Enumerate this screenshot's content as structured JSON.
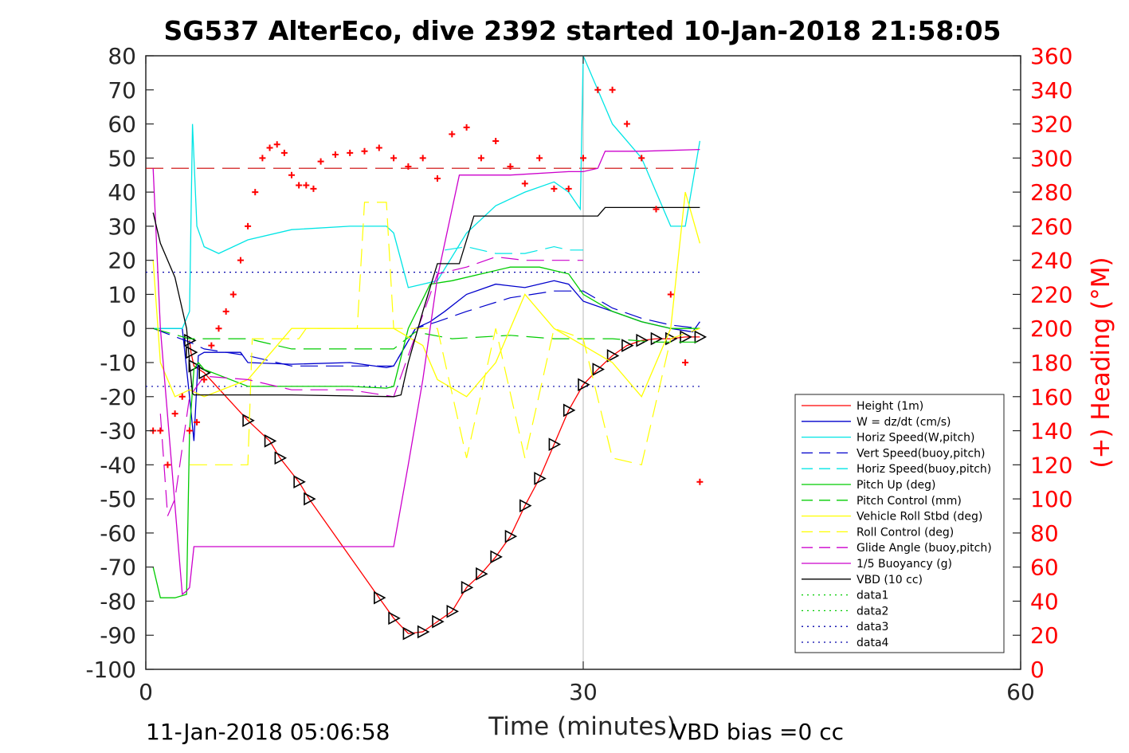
{
  "chart_data": {
    "type": "line",
    "title": "SG537 AlterEco, dive 2392 started 10-Jan-2018 21:58:05",
    "xlabel": "Time (minutes)",
    "ylabel_right": "(+) Heading (°M)",
    "xlim": [
      0,
      60
    ],
    "ylim_left": [
      -100,
      80
    ],
    "ylim_right": [
      0,
      360
    ],
    "xticks": [
      0,
      30,
      60
    ],
    "xtick_labels": [
      "0",
      "30",
      "60"
    ],
    "yticks_left": [
      80,
      70,
      60,
      50,
      40,
      30,
      20,
      10,
      0,
      -10,
      -20,
      -30,
      -40,
      -50,
      -60,
      -70,
      -80,
      -90,
      -100
    ],
    "ytick_labels_left": [
      "80",
      "70",
      "60",
      "50",
      "40",
      "30",
      "20",
      "10",
      "0",
      "-10",
      "-20",
      "-30",
      "-40",
      "-50",
      "-60",
      "-70",
      "-80",
      "-90",
      "-100"
    ],
    "yticks_right": [
      360,
      340,
      320,
      300,
      280,
      260,
      240,
      220,
      200,
      180,
      160,
      140,
      120,
      100,
      80,
      60,
      40,
      20,
      0
    ],
    "ytick_labels_right": [
      "360",
      "340",
      "320",
      "300",
      "280",
      "260",
      "240",
      "220",
      "200",
      "180",
      "160",
      "140",
      "120",
      "100",
      "80",
      "60",
      "40",
      "20",
      "0"
    ],
    "footer_left": "11-Jan-2018 05:06:58",
    "footer_right": "VBD bias =0 cc",
    "legend": [
      {
        "label": "Height (1m)",
        "color": "#ff0000",
        "dash": "solid"
      },
      {
        "label": "W = dz/dt (cm/s)",
        "color": "#0000cc",
        "dash": "solid"
      },
      {
        "label": "Horiz Speed(W,pitch)",
        "color": "#00e5e5",
        "dash": "solid"
      },
      {
        "label": "Vert Speed(buoy,pitch)",
        "color": "#0000cc",
        "dash": "dashed"
      },
      {
        "label": "Horiz Speed(buoy,pitch)",
        "color": "#00e5e5",
        "dash": "dashed"
      },
      {
        "label": "Pitch Up (deg)",
        "color": "#00cc00",
        "dash": "solid"
      },
      {
        "label": "Pitch Control (mm)",
        "color": "#00cc00",
        "dash": "dashed"
      },
      {
        "label": "Vehicle Roll Stbd (deg)",
        "color": "#ffff00",
        "dash": "solid"
      },
      {
        "label": "Roll Control (deg)",
        "color": "#ffff00",
        "dash": "dashed"
      },
      {
        "label": "Glide Angle (buoy,pitch)",
        "color": "#cc00cc",
        "dash": "dashed"
      },
      {
        "label": "1/5 Buoyancy (g)",
        "color": "#cc00cc",
        "dash": "solid"
      },
      {
        "label": "VBD (10 cc)",
        "color": "#000000",
        "dash": "solid"
      },
      {
        "label": "data1",
        "color": "#00cc00",
        "dash": "dotted"
      },
      {
        "label": "data2",
        "color": "#00cc00",
        "dash": "dotted"
      },
      {
        "label": "data3",
        "color": "#0000aa",
        "dash": "dotted"
      },
      {
        "label": "data4",
        "color": "#0000aa",
        "dash": "dotted"
      }
    ],
    "reference_lines": [
      {
        "y_right": 294,
        "color": "#cc0000",
        "dash": "dashed",
        "x_range": [
          0,
          38
        ]
      },
      {
        "y": 16.5,
        "color": "#0000aa",
        "dash": "dotted",
        "x_range": [
          0,
          38
        ]
      },
      {
        "y": -17,
        "color": "#0000aa",
        "dash": "dotted",
        "x_range": [
          0,
          38
        ]
      }
    ],
    "series": [
      {
        "name": "Height (1m)",
        "color": "#ff0000",
        "style": "solid",
        "markers": "triangle",
        "x": [
          3.0,
          3.1,
          3.3,
          4.0,
          7.0,
          8.5,
          9.2,
          10.5,
          11.2,
          16.0,
          17.0,
          18.0,
          19.0,
          20.0,
          21.0,
          22.0,
          23.0,
          24.0,
          25.0,
          26.0,
          27.0,
          28.0,
          29.0,
          30.0,
          31.0,
          32.0,
          33.0,
          34.0,
          35.0,
          36.0,
          37.0,
          38.0
        ],
        "y": [
          -3.5,
          -7,
          -11,
          -13,
          -27,
          -33,
          -38,
          -45,
          -50,
          -79,
          -85,
          -89.5,
          -89,
          -86,
          -83,
          -76,
          -72,
          -67,
          -61,
          -52,
          -44,
          -34,
          -24,
          -16.5,
          -12,
          -8,
          -5,
          -3.5,
          -3,
          -3,
          -2.5,
          -2.5
        ]
      },
      {
        "name": "W = dz/dt (cm/s)",
        "color": "#0000cc",
        "style": "solid",
        "x": [
          0.5,
          2.5,
          3.0,
          3.3,
          3.6,
          4.0,
          6.5,
          7.0,
          10.0,
          14.0,
          16.5,
          17.0,
          18.5,
          19.5,
          20.5,
          22.0,
          24.0,
          26.0,
          28.0,
          29.0,
          30.0,
          32.0,
          34.0,
          36.0,
          37.5,
          38.0
        ],
        "y": [
          0,
          0,
          -20,
          -33,
          -8,
          -7,
          -7,
          -10,
          -10.5,
          -10,
          -11.5,
          -11,
          0,
          2,
          5,
          10,
          13,
          12,
          14,
          13,
          8,
          5,
          2,
          0,
          -1,
          2
        ]
      },
      {
        "name": "Horiz Speed(W,pitch)",
        "color": "#00e5e5",
        "style": "solid",
        "x": [
          0.5,
          2.5,
          3.0,
          3.2,
          3.5,
          4.0,
          5.0,
          7.0,
          10.0,
          14.0,
          16.5,
          17.0,
          18.0,
          19.0,
          20.0,
          22.0,
          24.0,
          26.0,
          28.0,
          29.0,
          29.8,
          30.0,
          31.0,
          32.0,
          33.0,
          34.0,
          35.0,
          36.0,
          37.0,
          38.0
        ],
        "y": [
          0,
          0,
          5,
          60,
          30,
          24,
          22,
          26,
          29,
          30,
          30,
          28,
          12,
          13,
          14,
          28,
          36,
          40,
          43,
          40,
          35,
          80,
          70,
          60,
          55,
          50,
          40,
          30,
          30,
          55
        ]
      },
      {
        "name": "Vert Speed(buoy,pitch)",
        "color": "#0000cc",
        "style": "dashed",
        "x": [
          0.5,
          3.0,
          4.0,
          7.0,
          10.0,
          14.0,
          17.0,
          18.5,
          20.0,
          22.0,
          25.0,
          28.0,
          30.0,
          32.0,
          34.0,
          36.0,
          38.0
        ],
        "y": [
          0,
          -4,
          -6,
          -8,
          -11,
          -11,
          -11,
          0,
          2,
          5,
          9,
          11,
          11,
          6,
          3,
          1,
          0
        ]
      },
      {
        "name": "Horiz Speed(buoy,pitch)",
        "color": "#00e5e5",
        "style": "dashed",
        "x": [
          20.5,
          22.0,
          24.0,
          26.0,
          28.0,
          29.0,
          30.0
        ],
        "y": [
          23,
          24,
          22,
          22,
          24,
          23,
          23
        ]
      },
      {
        "name": "Pitch Up (deg)",
        "color": "#00cc00",
        "style": "solid",
        "x": [
          0.5,
          1.0,
          2.0,
          2.8,
          3.0,
          3.3,
          3.6,
          4.0,
          7.0,
          10.0,
          14.0,
          16.5,
          17.0,
          18.0,
          19.5,
          21.0,
          23.0,
          25.0,
          27.0,
          29.0,
          30.0,
          32.0,
          34.0,
          36.0,
          38.0
        ],
        "y": [
          -70,
          -79,
          -79,
          -78,
          -30,
          -12,
          -10,
          -12,
          -17,
          -17,
          -17,
          -17.5,
          -17,
          0,
          13,
          14,
          16,
          18,
          18,
          16,
          10,
          5,
          2,
          0,
          0
        ]
      },
      {
        "name": "Pitch Control (mm)",
        "color": "#00cc00",
        "style": "dashed",
        "x": [
          0.5,
          3.0,
          4.0,
          7.0,
          10.0,
          14.0,
          17.0,
          18.5,
          21.0,
          25.0,
          28.0,
          30.0,
          32.0,
          35.0,
          38.0
        ],
        "y": [
          0,
          -3,
          -3,
          -3,
          -6,
          -6,
          -6,
          -1,
          -3,
          -2,
          -3,
          -3,
          -3,
          -4,
          -4
        ]
      },
      {
        "name": "Vehicle Roll Stbd (deg)",
        "color": "#ffff00",
        "style": "solid",
        "x": [
          0.5,
          1.0,
          2.0,
          3.0,
          4.0,
          7.0,
          10.0,
          14.0,
          17.0,
          19.0,
          20.0,
          22.0,
          24.0,
          26.0,
          28.0,
          30.0,
          32.0,
          34.0,
          36.0,
          37.0,
          38.0
        ],
        "y": [
          20,
          -10,
          -20,
          -18,
          -20,
          -15,
          0,
          0,
          0,
          -5,
          -15,
          -20,
          -10,
          10,
          0,
          -5,
          -10,
          -20,
          0,
          40,
          25
        ]
      },
      {
        "name": "Roll Control (deg)",
        "color": "#ffff00",
        "style": "dashed",
        "x": [
          3.0,
          4.0,
          7.0,
          7.3,
          8.5,
          9.0,
          10.5,
          11.0,
          14.5,
          15.0,
          16.5,
          17.0,
          20.0,
          22.0,
          24.0,
          26.0,
          28.0,
          30.0,
          32.0,
          34.0,
          36.0,
          38.0
        ],
        "y": [
          -40,
          -40,
          -40,
          -3,
          -3,
          -3,
          -3,
          0,
          0,
          37,
          37,
          0,
          0,
          -38,
          0,
          -38,
          0,
          -3,
          -38,
          -40,
          -3,
          0
        ]
      },
      {
        "name": "Glide Angle (buoy,pitch)",
        "color": "#cc00cc",
        "style": "dashed",
        "x": [
          1.0,
          1.5,
          2.0,
          3.0,
          4.0,
          7.0,
          10.0,
          14.0,
          17.0,
          18.5,
          20.0,
          22.0,
          24.0,
          26.0,
          28.0,
          30.0
        ],
        "y": [
          -25,
          -55,
          -50,
          -20,
          -14,
          -15,
          -18,
          -18,
          -20,
          -2,
          16,
          18,
          21,
          20,
          20,
          20
        ]
      },
      {
        "name": "1/5 Buoyancy (g)",
        "color": "#cc00cc",
        "style": "solid",
        "x": [
          0.5,
          1.0,
          2.5,
          2.8,
          3.0,
          3.3,
          4.0,
          7.0,
          10.0,
          14.0,
          16.5,
          17.0,
          18.0,
          19.0,
          20.0,
          21.5,
          25.0,
          29.0,
          30.0,
          31.0,
          31.5,
          34.0,
          38.0
        ],
        "y": [
          47,
          0,
          -78,
          -77,
          -76,
          -64,
          -64,
          -64,
          -64,
          -64,
          -64,
          -64,
          -40,
          -15,
          15,
          45,
          45,
          46,
          46,
          47,
          52,
          52,
          52.5
        ]
      },
      {
        "name": "VBD (10 cc)",
        "color": "#000000",
        "style": "solid",
        "x": [
          0.5,
          1.0,
          2.0,
          2.8,
          3.0,
          3.2,
          3.3,
          4.0,
          10.0,
          17.0,
          17.5,
          18.0,
          19.0,
          20.0,
          21.5,
          22.5,
          25.0,
          30.0,
          31.0,
          31.5,
          38.0
        ],
        "y": [
          34,
          25,
          15,
          0,
          -10,
          -19,
          -19.5,
          -19.5,
          -19.5,
          -20,
          -19.5,
          -10,
          5,
          19,
          19,
          33,
          33,
          33,
          33,
          35.5,
          35.5
        ]
      }
    ],
    "heading_points": {
      "name": "(+) Heading",
      "color": "#ff0000",
      "marker": "+",
      "axis": "right",
      "x": [
        0.5,
        1.0,
        1.5,
        2.0,
        2.5,
        3.0,
        3.5,
        4.0,
        4.5,
        5.0,
        5.5,
        6.0,
        6.5,
        7.0,
        7.5,
        8.0,
        8.5,
        9.0,
        9.5,
        10.0,
        10.5,
        11.0,
        11.5,
        12.0,
        13.0,
        14.0,
        15.0,
        16.0,
        17.0,
        18.0,
        19.0,
        20.0,
        21.0,
        22.0,
        23.0,
        24.0,
        25.0,
        26.0,
        27.0,
        28.0,
        29.0,
        30.0,
        31.0,
        32.0,
        33.0,
        34.0,
        35.0,
        36.0,
        37.0,
        38.0
      ],
      "y": [
        140,
        140,
        120,
        150,
        160,
        140,
        145,
        170,
        190,
        200,
        210,
        220,
        240,
        260,
        280,
        300,
        306,
        308,
        303,
        290,
        284,
        284,
        282,
        298,
        302,
        303,
        304,
        306,
        300,
        295,
        300,
        288,
        314,
        318,
        300,
        310,
        295,
        285,
        300,
        282,
        282,
        300,
        340,
        340,
        320,
        300,
        270,
        220,
        180,
        110
      ]
    }
  }
}
